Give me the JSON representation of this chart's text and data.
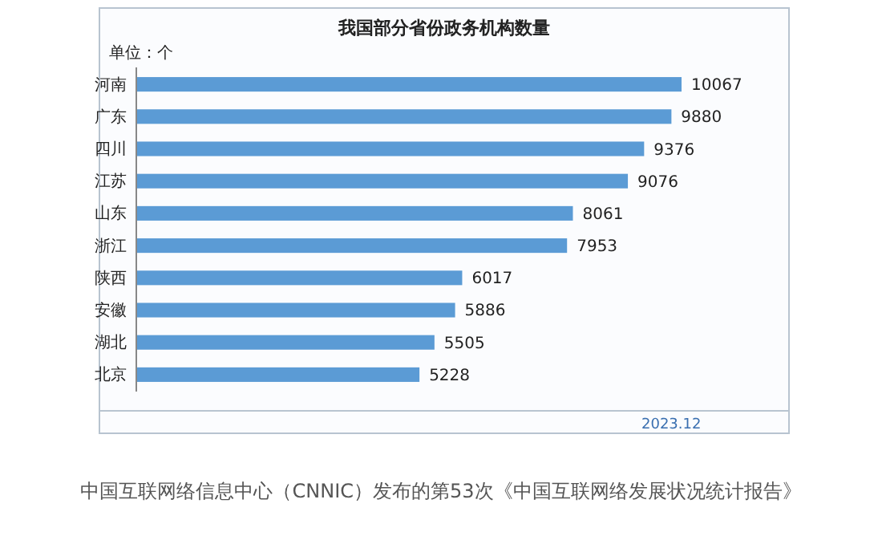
{
  "chart_data": {
    "type": "bar",
    "orientation": "horizontal",
    "title": "我国部分省份政务机构数量",
    "ylabel": "单位：个",
    "categories": [
      "河南",
      "广东",
      "四川",
      "江苏",
      "山东",
      "浙江",
      "陕西",
      "安徽",
      "湖北",
      "北京"
    ],
    "values": [
      10067,
      9880,
      9376,
      9076,
      8061,
      7953,
      6017,
      5886,
      5505,
      5228
    ],
    "color": "#5b9bd5",
    "data_labels": true,
    "annotations": [
      "2023.12",
      "中国互联网络信息中心（CNNIC）发布的第53次《中国互联网络发展状况统计报告》"
    ]
  }
}
